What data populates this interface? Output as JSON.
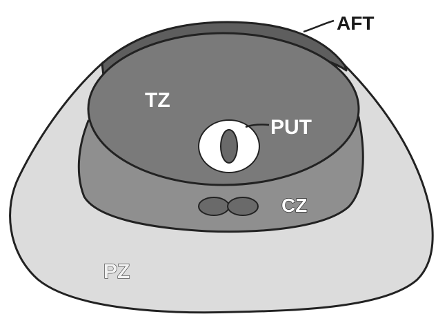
{
  "labels": {
    "aft": "AFT",
    "tz": "TZ",
    "put": "PUT",
    "cz": "CZ",
    "pz": "PZ"
  },
  "colors": {
    "background": "#ffffff",
    "peripheral_zone": "#dcdcdc",
    "central_zone": "#8f8f8f",
    "transition_zone": "#7a7a7a",
    "anterior_fibromuscular": "#5e5e5e",
    "urethra_ring": "#ffffff",
    "urethra_core": "#6a6a6a",
    "outline": "#222222"
  }
}
